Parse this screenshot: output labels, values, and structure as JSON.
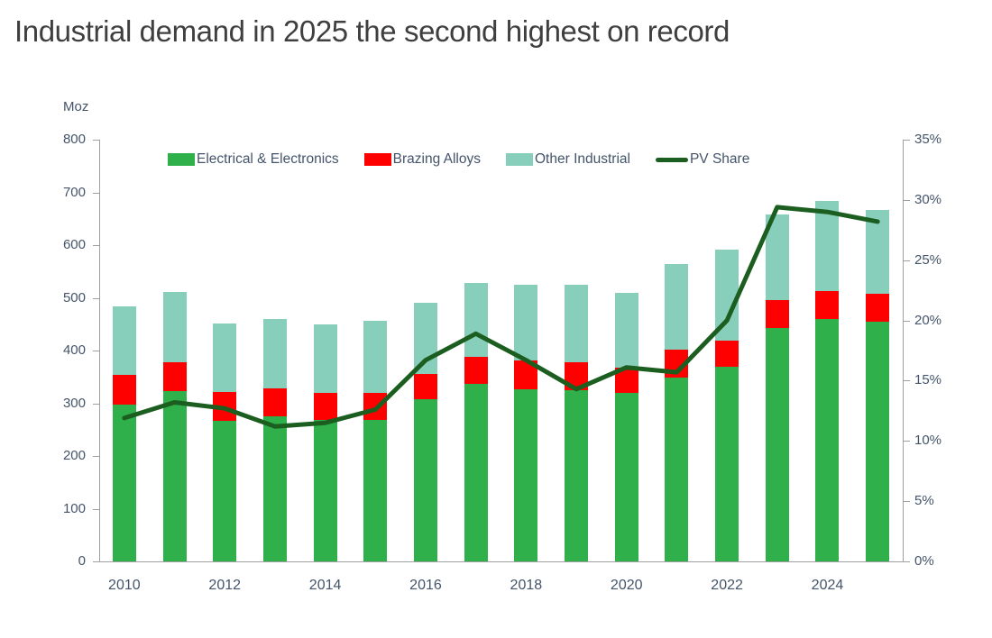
{
  "title": "Industrial demand in 2025 the second highest on record",
  "chart_data": {
    "type": "bar",
    "subtype": "stacked-bars-with-line-overlay",
    "title": "Industrial demand in 2025 the second highest on record",
    "categories": [
      "2010",
      "2011",
      "2012",
      "2013",
      "2014",
      "2015",
      "2016",
      "2017",
      "2018",
      "2019",
      "2020",
      "2021",
      "2022",
      "2023",
      "2024",
      "2025"
    ],
    "series": [
      {
        "name": "Electrical & Electronics",
        "type": "bar",
        "axis": "left",
        "color": "#2fb04a",
        "values": [
          298,
          323,
          266,
          275,
          268,
          269,
          307,
          337,
          327,
          324,
          320,
          348,
          370,
          442,
          459,
          454
        ]
      },
      {
        "name": "Brazing Alloys",
        "type": "bar",
        "axis": "left",
        "color": "#ff0000",
        "values": [
          56,
          55,
          56,
          53,
          52,
          50,
          49,
          51,
          54,
          53,
          47,
          53,
          49,
          53,
          53,
          53
        ]
      },
      {
        "name": "Other Industrial",
        "type": "bar",
        "axis": "left",
        "color": "#87cebb",
        "values": [
          129,
          133,
          130,
          132,
          130,
          137,
          134,
          140,
          144,
          148,
          143,
          163,
          173,
          163,
          171,
          159
        ]
      },
      {
        "name": "PV Share",
        "type": "line",
        "axis": "right",
        "color": "#1c5e20",
        "values": [
          11.9,
          13.2,
          12.7,
          11.2,
          11.5,
          12.6,
          16.7,
          18.9,
          16.7,
          14.3,
          16.1,
          15.7,
          20.0,
          29.4,
          29.0,
          28.2
        ]
      }
    ],
    "stacked_totals": [
      483,
      511,
      452,
      460,
      450,
      456,
      490,
      528,
      525,
      525,
      510,
      564,
      592,
      658,
      683,
      666
    ],
    "left_axis": {
      "label": "Moz",
      "min": 0,
      "max": 800,
      "tick_step": 100,
      "ticks": [
        "0",
        "100",
        "200",
        "300",
        "400",
        "500",
        "600",
        "700",
        "800"
      ]
    },
    "right_axis": {
      "min": 0,
      "max": 35,
      "tick_step": 5,
      "format": "percent",
      "ticks": [
        "0%",
        "5%",
        "10%",
        "15%",
        "20%",
        "25%",
        "30%",
        "35%"
      ]
    },
    "x_tick_labels": [
      "2010",
      "2012",
      "2014",
      "2016",
      "2018",
      "2020",
      "2022",
      "2024"
    ],
    "legend_position": "top",
    "grid": "off",
    "colors": {
      "axis_text": "#44546a",
      "axis_line": "#a0a0a0",
      "title_text": "#3f3f3f",
      "background": "#ffffff"
    }
  }
}
